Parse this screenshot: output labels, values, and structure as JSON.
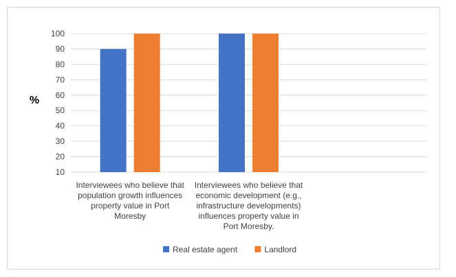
{
  "chart_data": {
    "type": "bar",
    "title": "",
    "ylabel": "%",
    "xlabel": "",
    "ylim": [
      10,
      100
    ],
    "yticks": [
      10,
      20,
      30,
      40,
      50,
      60,
      70,
      80,
      90,
      100
    ],
    "grid": true,
    "legend_position": "bottom",
    "categories": [
      [
        "Interviewees who believe that",
        "population growth influences",
        "property value in Port",
        "Moresby"
      ],
      [
        "Interviewees who believe that",
        "economic development (e.g.,",
        "infrastructure developments)",
        "influences property value in",
        "Port Moresby."
      ],
      []
    ],
    "series": [
      {
        "name": "Real estate agent",
        "color": "#4472c4",
        "values": [
          90,
          100,
          null
        ]
      },
      {
        "name": "Landlord",
        "color": "#ed7d31",
        "values": [
          100,
          100,
          null
        ]
      }
    ]
  }
}
